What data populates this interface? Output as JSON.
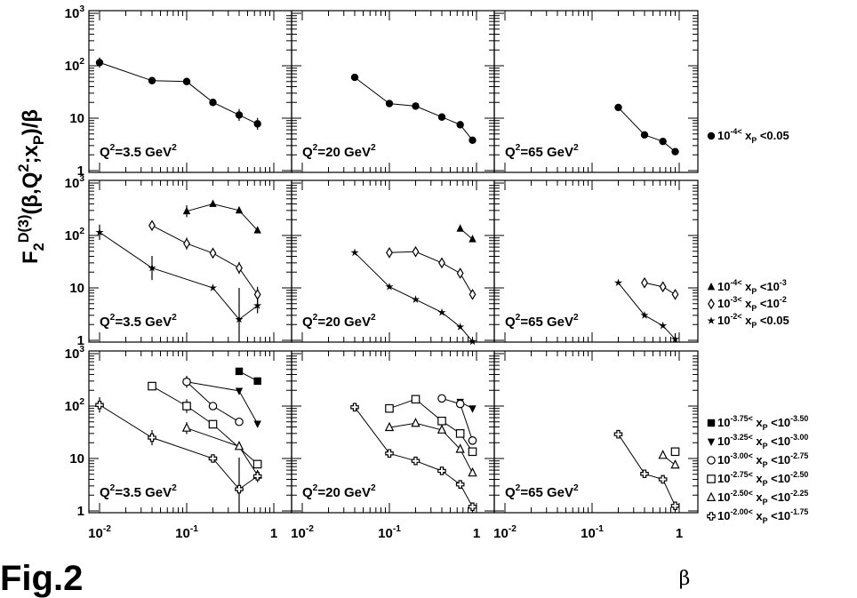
{
  "figure_label": "Fig.2",
  "chart_data": {
    "type": "scatter",
    "ylabel": "F_2^{D(3)}(β,Q^2;x_P)/β",
    "xlabel": "β",
    "x_scale": "log",
    "y_scale": "log",
    "xlim": [
      0.01,
      1
    ],
    "ylim": [
      1,
      1000
    ],
    "x_tick_labels": [
      "10^-2",
      "10^-1",
      "1"
    ],
    "y_tick_labels": [
      "1",
      "10",
      "10^2",
      "10^3"
    ],
    "q2_labels": [
      "Q^2=3.5 GeV^2",
      "Q^2=20 GeV^2",
      "Q^2=65 GeV^2"
    ],
    "rows": [
      {
        "legend": [
          {
            "marker": "circle-filled",
            "lo": "10^-4",
            "hi": "0.05"
          }
        ],
        "panels": [
          {
            "series": [
              {
                "marker": "circle-filled",
                "points": [
                  [
                    0.01,
                    115,
                    1.25
                  ],
                  [
                    0.04,
                    52,
                    0
                  ],
                  [
                    0.1,
                    50,
                    0
                  ],
                  [
                    0.2,
                    20,
                    0
                  ],
                  [
                    0.4,
                    11.5,
                    1.3
                  ],
                  [
                    0.65,
                    7.8,
                    1.3
                  ]
                ]
              }
            ]
          },
          {
            "series": [
              {
                "marker": "circle-filled",
                "points": [
                  [
                    0.04,
                    60,
                    0
                  ],
                  [
                    0.1,
                    19,
                    0
                  ],
                  [
                    0.2,
                    17,
                    0
                  ],
                  [
                    0.4,
                    10.5,
                    0
                  ],
                  [
                    0.65,
                    7.5,
                    0
                  ],
                  [
                    0.9,
                    3.8,
                    0
                  ]
                ]
              }
            ]
          },
          {
            "series": [
              {
                "marker": "circle-filled",
                "points": [
                  [
                    0.2,
                    16,
                    0
                  ],
                  [
                    0.4,
                    4.8,
                    0
                  ],
                  [
                    0.65,
                    3.6,
                    0
                  ],
                  [
                    0.9,
                    2.3,
                    0
                  ]
                ]
              }
            ]
          }
        ]
      },
      {
        "legend": [
          {
            "marker": "triangle-filled",
            "lo": "10^-4",
            "hi": "10^-3"
          },
          {
            "marker": "diamond-open",
            "lo": "10^-3",
            "hi": "10^-2"
          },
          {
            "marker": "star-filled",
            "lo": "10^-2",
            "hi": "0.05"
          }
        ],
        "panels": [
          {
            "series": [
              {
                "marker": "triangle-filled",
                "points": [
                  [
                    0.1,
                    290,
                    1.3
                  ],
                  [
                    0.2,
                    400,
                    0
                  ],
                  [
                    0.4,
                    300,
                    0
                  ],
                  [
                    0.65,
                    125,
                    0
                  ]
                ]
              },
              {
                "marker": "diamond-open",
                "points": [
                  [
                    0.04,
                    155,
                    0
                  ],
                  [
                    0.1,
                    70,
                    1.3
                  ],
                  [
                    0.2,
                    46,
                    0
                  ],
                  [
                    0.4,
                    24,
                    1.3
                  ],
                  [
                    0.65,
                    7.5,
                    1.4
                  ]
                ]
              },
              {
                "marker": "star-filled",
                "points": [
                  [
                    0.01,
                    115,
                    1.4
                  ],
                  [
                    0.04,
                    24,
                    1.7
                  ],
                  [
                    0.2,
                    10,
                    0
                  ],
                  [
                    0.4,
                    2.5,
                    4
                  ],
                  [
                    0.65,
                    4.6,
                    1.4
                  ]
                ]
              }
            ]
          },
          {
            "series": [
              {
                "marker": "triangle-filled",
                "points": [
                  [
                    0.65,
                    135,
                    0
                  ],
                  [
                    0.9,
                    85,
                    0
                  ]
                ]
              },
              {
                "marker": "diamond-open",
                "points": [
                  [
                    0.1,
                    47,
                    0
                  ],
                  [
                    0.2,
                    49,
                    0
                  ],
                  [
                    0.4,
                    30,
                    0
                  ],
                  [
                    0.65,
                    19,
                    0
                  ],
                  [
                    0.9,
                    7.5,
                    0
                  ]
                ]
              },
              {
                "marker": "star-filled",
                "points": [
                  [
                    0.04,
                    47,
                    0
                  ],
                  [
                    0.1,
                    10.5,
                    0
                  ],
                  [
                    0.2,
                    6,
                    0
                  ],
                  [
                    0.4,
                    3.4,
                    0
                  ],
                  [
                    0.65,
                    1.8,
                    0
                  ],
                  [
                    0.9,
                    0.95,
                    0
                  ]
                ]
              }
            ]
          },
          {
            "series": [
              {
                "marker": "diamond-open",
                "points": [
                  [
                    0.4,
                    12.5,
                    0
                  ],
                  [
                    0.65,
                    10.5,
                    0
                  ],
                  [
                    0.9,
                    7.5,
                    0
                  ]
                ]
              },
              {
                "marker": "star-filled",
                "points": [
                  [
                    0.2,
                    12.5,
                    0
                  ],
                  [
                    0.4,
                    3,
                    0
                  ],
                  [
                    0.65,
                    1.9,
                    0
                  ],
                  [
                    0.9,
                    1.05,
                    1.3
                  ]
                ]
              }
            ]
          }
        ]
      },
      {
        "legend": [
          {
            "marker": "square-filled",
            "lo": "10^-3.75",
            "hi": "10^-3.50"
          },
          {
            "marker": "triangle-down-filled",
            "lo": "10^-3.25",
            "hi": "10^-3.00"
          },
          {
            "marker": "circle-open",
            "lo": "10^-3.00",
            "hi": "10^-2.75"
          },
          {
            "marker": "square-open",
            "lo": "10^-2.75",
            "hi": "10^-2.50"
          },
          {
            "marker": "triangle-open",
            "lo": "10^-2.50",
            "hi": "10^-2.25"
          },
          {
            "marker": "cross-open",
            "lo": "10^-2.00",
            "hi": "10^-1.75"
          }
        ],
        "panels": [
          {
            "series": [
              {
                "marker": "square-filled",
                "points": [
                  [
                    0.4,
                    460,
                    0
                  ],
                  [
                    0.65,
                    300,
                    0
                  ]
                ]
              },
              {
                "marker": "triangle-down-filled",
                "points": [
                  [
                    0.1,
                    290,
                    0
                  ],
                  [
                    0.4,
                    195,
                    0
                  ],
                  [
                    0.65,
                    46,
                    0
                  ]
                ]
              },
              {
                "marker": "circle-open",
                "points": [
                  [
                    0.1,
                    290,
                    1.3
                  ],
                  [
                    0.2,
                    100,
                    0
                  ],
                  [
                    0.4,
                    50,
                    0
                  ]
                ]
              },
              {
                "marker": "square-open",
                "points": [
                  [
                    0.04,
                    240,
                    0
                  ],
                  [
                    0.1,
                    100,
                    1.35
                  ],
                  [
                    0.2,
                    45,
                    0
                  ],
                  [
                    0.65,
                    7.8,
                    0
                  ]
                ]
              },
              {
                "marker": "triangle-open",
                "points": [
                  [
                    0.1,
                    38,
                    1.3
                  ],
                  [
                    0.4,
                    17,
                    0
                  ],
                  [
                    0.65,
                    4.8,
                    0
                  ]
                ]
              },
              {
                "marker": "cross-open",
                "points": [
                  [
                    0.01,
                    105,
                    1.4
                  ],
                  [
                    0.04,
                    25,
                    1.4
                  ],
                  [
                    0.2,
                    10,
                    0
                  ],
                  [
                    0.4,
                    2.6,
                    4
                  ],
                  [
                    0.65,
                    4.6,
                    1.3
                  ]
                ]
              }
            ]
          },
          {
            "series": [
              {
                "marker": "triangle-down-filled",
                "points": [
                  [
                    0.65,
                    120,
                    0
                  ],
                  [
                    0.9,
                    90,
                    0
                  ]
                ]
              },
              {
                "marker": "circle-open",
                "points": [
                  [
                    0.4,
                    140,
                    0
                  ],
                  [
                    0.65,
                    110,
                    0
                  ],
                  [
                    0.9,
                    22,
                    0
                  ]
                ]
              },
              {
                "marker": "square-open",
                "points": [
                  [
                    0.1,
                    90,
                    0
                  ],
                  [
                    0.2,
                    135,
                    0
                  ],
                  [
                    0.4,
                    52,
                    0
                  ],
                  [
                    0.65,
                    30,
                    0
                  ],
                  [
                    0.9,
                    13.5,
                    0
                  ]
                ]
              },
              {
                "marker": "triangle-open",
                "points": [
                  [
                    0.1,
                    39,
                    0
                  ],
                  [
                    0.2,
                    47,
                    0
                  ],
                  [
                    0.4,
                    35,
                    0
                  ],
                  [
                    0.65,
                    15,
                    0
                  ],
                  [
                    0.9,
                    5.3,
                    0
                  ]
                ]
              },
              {
                "marker": "cross-open",
                "points": [
                  [
                    0.04,
                    95,
                    0
                  ],
                  [
                    0.1,
                    12.5,
                    0
                  ],
                  [
                    0.2,
                    9,
                    0
                  ],
                  [
                    0.4,
                    5.8,
                    0
                  ],
                  [
                    0.65,
                    3.2,
                    0
                  ],
                  [
                    0.9,
                    1.2,
                    0
                  ]
                ]
              }
            ]
          },
          {
            "series": [
              {
                "marker": "square-open",
                "points": [
                  [
                    0.9,
                    13.5,
                    0
                  ]
                ]
              },
              {
                "marker": "triangle-open",
                "points": [
                  [
                    0.65,
                    11.5,
                    0
                  ],
                  [
                    0.9,
                    7.5,
                    0
                  ]
                ]
              },
              {
                "marker": "cross-open",
                "points": [
                  [
                    0.2,
                    29,
                    0
                  ],
                  [
                    0.4,
                    5.1,
                    0
                  ],
                  [
                    0.65,
                    4,
                    0
                  ],
                  [
                    0.9,
                    1.25,
                    0
                  ]
                ]
              }
            ]
          }
        ]
      }
    ]
  }
}
